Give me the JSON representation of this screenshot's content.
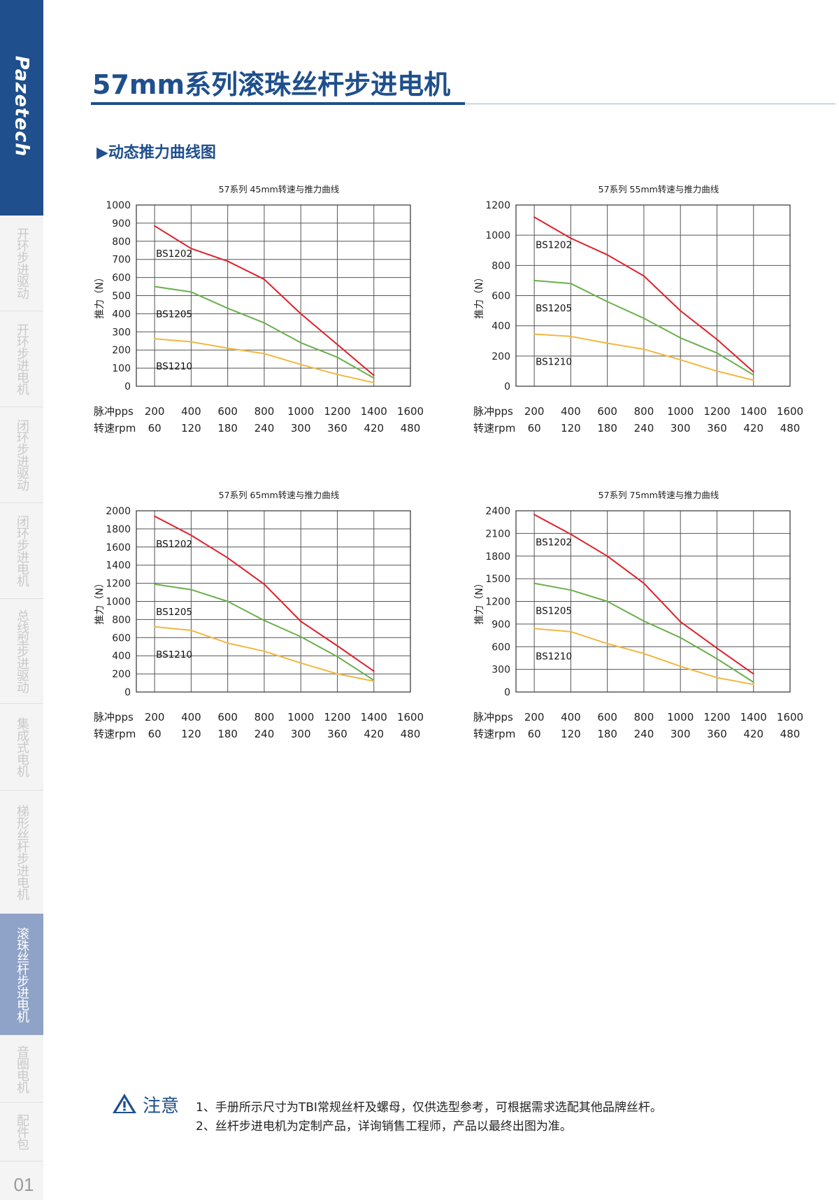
{
  "sidebar": {
    "brand": "Pazetech",
    "items": [
      {
        "label": "开环步进驱动",
        "active": false
      },
      {
        "label": "开环步进电机",
        "active": false
      },
      {
        "label": "闭环步进驱动",
        "active": false
      },
      {
        "label": "闭环步进电机",
        "active": false
      },
      {
        "label": "总线型步进驱动",
        "active": false
      },
      {
        "label": "集成式电机",
        "active": false
      },
      {
        "label": "梯形丝杆步进电机",
        "active": false
      },
      {
        "label": "滚珠丝杆步进电机",
        "active": true
      },
      {
        "label": "音圈电机",
        "active": false
      },
      {
        "label": "配件包",
        "active": false
      }
    ],
    "page_number": "01"
  },
  "header": {
    "title": "57mm系列滚珠丝杆步进电机",
    "section": "▶动态推力曲线图"
  },
  "colors": {
    "brand_blue": "#1f4f8c",
    "BS1202": "#e0202a",
    "BS1205": "#6ab04c",
    "BS1210": "#f0b840"
  },
  "chart_data": [
    {
      "type": "line",
      "title": "57系列 45mm转速与推力曲线",
      "ylabel": "推力（N）",
      "x_row_labels": [
        "脉冲pps",
        "转速rpm"
      ],
      "x_pps": [
        200,
        400,
        600,
        800,
        1000,
        1200,
        1400,
        1600
      ],
      "x_rpm": [
        60,
        120,
        180,
        240,
        300,
        360,
        420,
        480
      ],
      "ylim": [
        0,
        1000
      ],
      "yticks": [
        0,
        100,
        200,
        300,
        400,
        500,
        600,
        700,
        800,
        900,
        1000
      ],
      "grid": true,
      "series": [
        {
          "name": "BS1202",
          "color": "#e0202a",
          "x": [
            200,
            400,
            600,
            800,
            1000,
            1200,
            1400
          ],
          "y": [
            885,
            760,
            690,
            590,
            400,
            230,
            60
          ]
        },
        {
          "name": "BS1205",
          "color": "#6ab04c",
          "x": [
            200,
            400,
            600,
            800,
            1000,
            1200,
            1400
          ],
          "y": [
            550,
            520,
            430,
            350,
            240,
            160,
            45
          ]
        },
        {
          "name": "BS1210",
          "color": "#f0b840",
          "x": [
            200,
            400,
            600,
            800,
            1000,
            1200,
            1400
          ],
          "y": [
            262,
            245,
            210,
            180,
            120,
            65,
            20
          ]
        }
      ]
    },
    {
      "type": "line",
      "title": "57系列 55mm转速与推力曲线",
      "ylabel": "推力（N）",
      "x_row_labels": [
        "脉冲pps",
        "转速rpm"
      ],
      "x_pps": [
        200,
        400,
        600,
        800,
        1000,
        1200,
        1400,
        1600
      ],
      "x_rpm": [
        60,
        120,
        180,
        240,
        300,
        360,
        420,
        480
      ],
      "ylim": [
        0,
        1200
      ],
      "yticks": [
        0,
        200,
        400,
        600,
        800,
        1000,
        1200
      ],
      "grid": true,
      "series": [
        {
          "name": "BS1202",
          "color": "#e0202a",
          "x": [
            200,
            400,
            600,
            800,
            1000,
            1200,
            1400
          ],
          "y": [
            1120,
            980,
            870,
            730,
            500,
            310,
            95
          ]
        },
        {
          "name": "BS1205",
          "color": "#6ab04c",
          "x": [
            200,
            400,
            600,
            800,
            1000,
            1200,
            1400
          ],
          "y": [
            700,
            680,
            560,
            450,
            320,
            220,
            75
          ]
        },
        {
          "name": "BS1210",
          "color": "#f0b840",
          "x": [
            200,
            400,
            600,
            800,
            1000,
            1200,
            1400
          ],
          "y": [
            345,
            330,
            285,
            245,
            175,
            100,
            40
          ]
        }
      ]
    },
    {
      "type": "line",
      "title": "57系列 65mm转速与推力曲线",
      "ylabel": "推力（N）",
      "x_row_labels": [
        "脉冲pps",
        "转速rpm"
      ],
      "x_pps": [
        200,
        400,
        600,
        800,
        1000,
        1200,
        1400,
        1600
      ],
      "x_rpm": [
        60,
        120,
        180,
        240,
        300,
        360,
        420,
        480
      ],
      "ylim": [
        0,
        2000
      ],
      "yticks": [
        0,
        200,
        400,
        600,
        800,
        1000,
        1200,
        1400,
        1600,
        1800,
        2000
      ],
      "grid": true,
      "series": [
        {
          "name": "BS1202",
          "color": "#e0202a",
          "x": [
            200,
            400,
            600,
            800,
            1000,
            1200,
            1400
          ],
          "y": [
            1940,
            1730,
            1480,
            1190,
            780,
            510,
            230
          ]
        },
        {
          "name": "BS1205",
          "color": "#6ab04c",
          "x": [
            200,
            400,
            600,
            800,
            1000,
            1200,
            1400
          ],
          "y": [
            1190,
            1130,
            1000,
            790,
            610,
            390,
            130
          ]
        },
        {
          "name": "BS1210",
          "color": "#f0b840",
          "x": [
            200,
            400,
            600,
            800,
            1000,
            1200,
            1400
          ],
          "y": [
            720,
            680,
            540,
            450,
            320,
            200,
            120
          ]
        }
      ]
    },
    {
      "type": "line",
      "title": "57系列 75mm转速与推力曲线",
      "ylabel": "推力（N）",
      "x_row_labels": [
        "脉冲pps",
        "转速rpm"
      ],
      "x_pps": [
        200,
        400,
        600,
        800,
        1000,
        1200,
        1400,
        1600
      ],
      "x_rpm": [
        60,
        120,
        180,
        240,
        300,
        360,
        420,
        480
      ],
      "ylim": [
        0,
        2400
      ],
      "yticks": [
        0,
        300,
        600,
        900,
        1200,
        1500,
        1800,
        2100,
        2400
      ],
      "grid": true,
      "series": [
        {
          "name": "BS1202",
          "color": "#e0202a",
          "x": [
            200,
            400,
            600,
            800,
            1000,
            1200,
            1400
          ],
          "y": [
            2350,
            2090,
            1800,
            1440,
            930,
            580,
            240
          ]
        },
        {
          "name": "BS1205",
          "color": "#6ab04c",
          "x": [
            200,
            400,
            600,
            800,
            1000,
            1200,
            1400
          ],
          "y": [
            1440,
            1350,
            1200,
            940,
            720,
            440,
            130
          ]
        },
        {
          "name": "BS1210",
          "color": "#f0b840",
          "x": [
            200,
            400,
            600,
            800,
            1000,
            1200,
            1400
          ],
          "y": [
            840,
            800,
            640,
            510,
            340,
            190,
            100
          ]
        }
      ]
    }
  ],
  "notes": {
    "label": "注意",
    "lines": [
      "1、手册所示尺寸为TBI常规丝杆及螺母，仅供选型参考，可根据需求选配其他品牌丝杆。",
      "2、丝杆步进电机为定制产品，详询销售工程师，产品以最终出图为准。"
    ]
  }
}
